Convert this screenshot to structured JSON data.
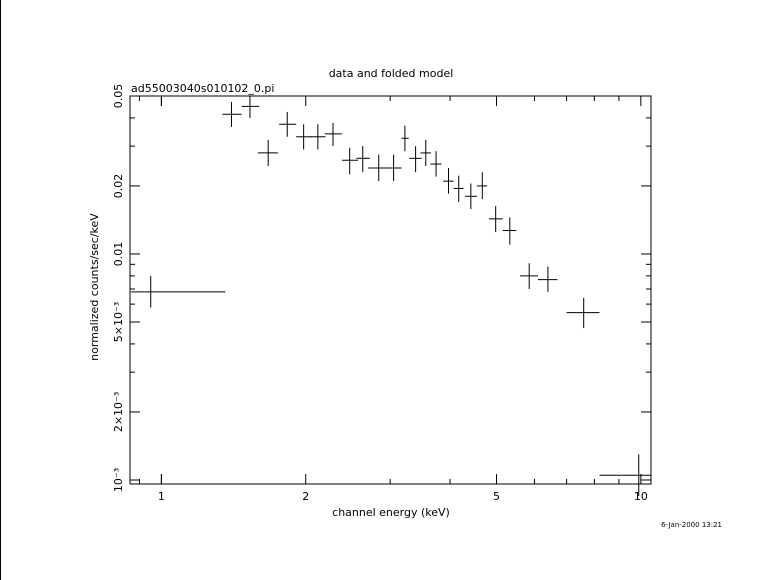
{
  "chart_data": {
    "type": "scatter",
    "title": "data and folded model",
    "subtitle": "ad55003040s010102_0.pi",
    "xlabel": "channel energy (keV)",
    "ylabel": "normalized counts/sec/keV",
    "timestamp": "6-Jan-2000 13:21",
    "x_scale": "log",
    "y_scale": "log",
    "xlim": [
      0.86,
      10.5
    ],
    "ylim": [
      0.00096,
      0.05
    ],
    "x_ticks": [
      {
        "value": 1,
        "label": "1"
      },
      {
        "value": 2,
        "label": "2"
      },
      {
        "value": 5,
        "label": "5"
      },
      {
        "value": 10,
        "label": "10"
      }
    ],
    "y_ticks": [
      {
        "value": 0.001,
        "label": "10⁻³"
      },
      {
        "value": 0.002,
        "label": "2×10⁻³"
      },
      {
        "value": 0.005,
        "label": "5×10⁻³"
      },
      {
        "value": 0.01,
        "label": "0.01"
      },
      {
        "value": 0.02,
        "label": "0.02"
      },
      {
        "value": 0.05,
        "label": "0.05"
      }
    ],
    "series": [
      {
        "points": [
          {
            "x": 0.95,
            "xlo": 0.865,
            "xhi": 1.36,
            "y": 0.0068,
            "ylo": 0.0058,
            "yhi": 0.008
          },
          {
            "x": 1.4,
            "xlo": 1.34,
            "xhi": 1.47,
            "y": 0.0415,
            "ylo": 0.0365,
            "yhi": 0.047
          },
          {
            "x": 1.53,
            "xlo": 1.47,
            "xhi": 1.6,
            "y": 0.045,
            "ylo": 0.04,
            "yhi": 0.05
          },
          {
            "x": 1.67,
            "xlo": 1.59,
            "xhi": 1.75,
            "y": 0.028,
            "ylo": 0.0245,
            "yhi": 0.032
          },
          {
            "x": 1.83,
            "xlo": 1.76,
            "xhi": 1.91,
            "y": 0.0375,
            "ylo": 0.033,
            "yhi": 0.0425
          },
          {
            "x": 1.98,
            "xlo": 1.91,
            "xhi": 2.06,
            "y": 0.033,
            "ylo": 0.029,
            "yhi": 0.0375
          },
          {
            "x": 2.12,
            "xlo": 2.05,
            "xhi": 2.2,
            "y": 0.033,
            "ylo": 0.029,
            "yhi": 0.0375
          },
          {
            "x": 2.28,
            "xlo": 2.19,
            "xhi": 2.38,
            "y": 0.034,
            "ylo": 0.03,
            "yhi": 0.038
          },
          {
            "x": 2.47,
            "xlo": 2.38,
            "xhi": 2.57,
            "y": 0.026,
            "ylo": 0.0225,
            "yhi": 0.0295
          },
          {
            "x": 2.63,
            "xlo": 2.55,
            "xhi": 2.72,
            "y": 0.0265,
            "ylo": 0.023,
            "yhi": 0.03
          },
          {
            "x": 2.84,
            "xlo": 2.7,
            "xhi": 2.98,
            "y": 0.024,
            "ylo": 0.021,
            "yhi": 0.0275
          },
          {
            "x": 3.05,
            "xlo": 2.93,
            "xhi": 3.17,
            "y": 0.024,
            "ylo": 0.021,
            "yhi": 0.0275
          },
          {
            "x": 3.22,
            "xlo": 3.17,
            "xhi": 3.28,
            "y": 0.0325,
            "ylo": 0.0285,
            "yhi": 0.037
          },
          {
            "x": 3.39,
            "xlo": 3.29,
            "xhi": 3.49,
            "y": 0.0265,
            "ylo": 0.023,
            "yhi": 0.03
          },
          {
            "x": 3.56,
            "xlo": 3.47,
            "xhi": 3.65,
            "y": 0.028,
            "ylo": 0.0245,
            "yhi": 0.032
          },
          {
            "x": 3.74,
            "xlo": 3.64,
            "xhi": 3.84,
            "y": 0.025,
            "ylo": 0.022,
            "yhi": 0.0285
          },
          {
            "x": 3.97,
            "xlo": 3.87,
            "xhi": 4.07,
            "y": 0.021,
            "ylo": 0.0185,
            "yhi": 0.024
          },
          {
            "x": 4.17,
            "xlo": 4.07,
            "xhi": 4.27,
            "y": 0.0195,
            "ylo": 0.017,
            "yhi": 0.0222
          },
          {
            "x": 4.42,
            "xlo": 4.3,
            "xhi": 4.55,
            "y": 0.018,
            "ylo": 0.0158,
            "yhi": 0.0205
          },
          {
            "x": 4.67,
            "xlo": 4.55,
            "xhi": 4.78,
            "y": 0.02,
            "ylo": 0.0175,
            "yhi": 0.023
          },
          {
            "x": 4.98,
            "xlo": 4.82,
            "xhi": 5.15,
            "y": 0.0143,
            "ylo": 0.0125,
            "yhi": 0.0163
          },
          {
            "x": 5.33,
            "xlo": 5.15,
            "xhi": 5.5,
            "y": 0.0127,
            "ylo": 0.011,
            "yhi": 0.0145
          },
          {
            "x": 5.85,
            "xlo": 5.6,
            "xhi": 6.1,
            "y": 0.008,
            "ylo": 0.007,
            "yhi": 0.0091
          },
          {
            "x": 6.4,
            "xlo": 6.1,
            "xhi": 6.7,
            "y": 0.0077,
            "ylo": 0.0068,
            "yhi": 0.0088
          },
          {
            "x": 7.6,
            "xlo": 7.0,
            "xhi": 8.2,
            "y": 0.0055,
            "ylo": 0.0047,
            "yhi": 0.0064
          },
          {
            "x": 9.9,
            "xlo": 8.2,
            "xhi": 10.5,
            "y": 0.00105,
            "ylo": 0.00085,
            "yhi": 0.0013
          }
        ]
      }
    ]
  }
}
